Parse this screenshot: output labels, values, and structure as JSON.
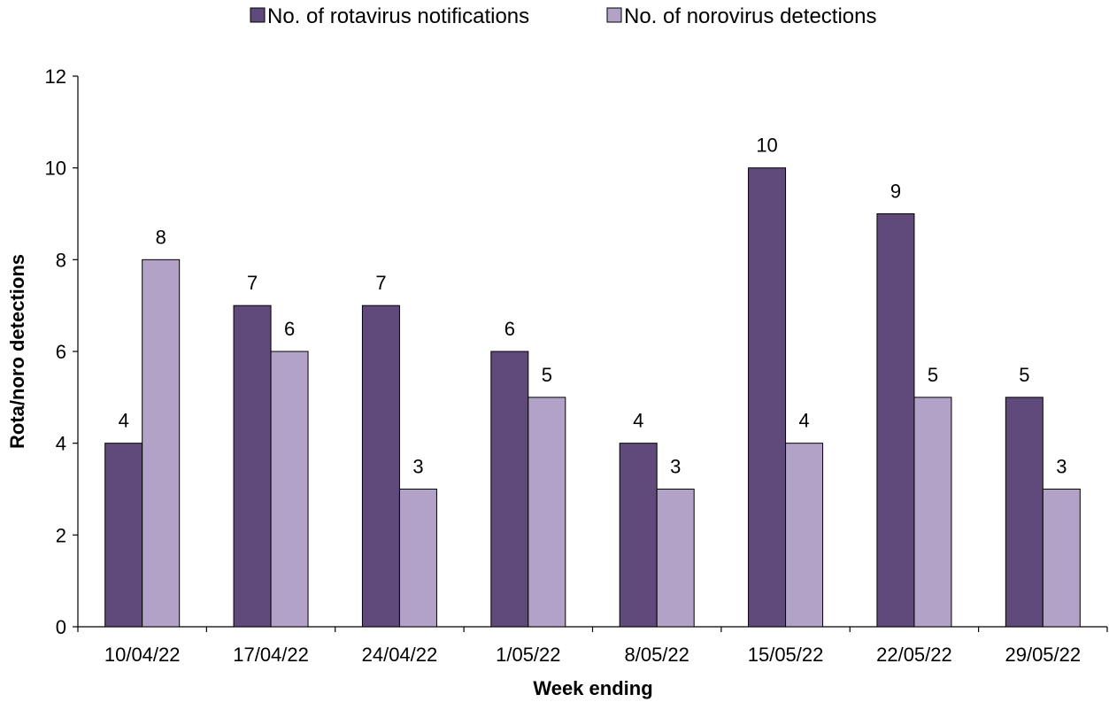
{
  "chart_data": {
    "type": "bar",
    "title": "",
    "xlabel": "Week ending",
    "ylabel": "Rota/noro detections",
    "ylim": [
      0,
      12
    ],
    "yticks": [
      0,
      2,
      4,
      6,
      8,
      10,
      12
    ],
    "grid": false,
    "legend_position": "top-center",
    "categories": [
      "10/04/22",
      "17/04/22",
      "24/04/22",
      "1/05/22",
      "8/05/22",
      "15/05/22",
      "22/05/22",
      "29/05/22"
    ],
    "series": [
      {
        "name": "No. of rotavirus notifications",
        "color": "#604a7b",
        "values": [
          4,
          7,
          7,
          6,
          4,
          10,
          9,
          5
        ]
      },
      {
        "name": "No. of norovirus detections",
        "color": "#b3a2c7",
        "values": [
          8,
          6,
          3,
          5,
          3,
          4,
          5,
          3
        ]
      }
    ]
  }
}
